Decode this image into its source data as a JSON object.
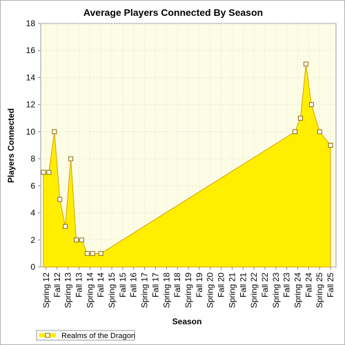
{
  "chart_data": {
    "type": "area",
    "title": "Average Players Connected By Season",
    "xlabel": "Season",
    "ylabel": "Players Connected",
    "ylim": [
      0,
      18
    ],
    "y_ticks": [
      0,
      2,
      4,
      6,
      8,
      10,
      12,
      14,
      16,
      18
    ],
    "grid": true,
    "legend_position": "bottom-left",
    "x_ticks": [
      "Spring 12",
      "Fall 12",
      "Spring 13",
      "Fall 13",
      "Spring 14",
      "Fall 14",
      "Spring 15",
      "Fall 15",
      "Fall 16",
      "Spring 17",
      "Fall 17",
      "Spring 18",
      "Fall 18",
      "Spring 19",
      "Fall 19",
      "Spring 20",
      "Fall 20",
      "Spring 21",
      "Fall 21",
      "Spring 22",
      "Fall 22",
      "Spring 23",
      "Fall 23",
      "Spring 24",
      "Fall 24",
      "Spring 25",
      "Fall 25"
    ],
    "series": [
      {
        "name": "Realms of the Dragon",
        "color": "#ffee00",
        "stroke": "#d4a000",
        "points": [
          {
            "x": "Spring 12",
            "y": 7
          },
          {
            "x": "Spring 12",
            "y": 7
          },
          {
            "x": "Fall 12",
            "y": 10
          },
          {
            "x": "Fall 12",
            "y": 5
          },
          {
            "x": "Spring 13",
            "y": 3
          },
          {
            "x": "Spring 13",
            "y": 8
          },
          {
            "x": "Fall 13",
            "y": 2
          },
          {
            "x": "Fall 13",
            "y": 2
          },
          {
            "x": "Spring 14",
            "y": 1
          },
          {
            "x": "Spring 14",
            "y": 1
          },
          {
            "x": "Fall 14",
            "y": 1
          },
          {
            "x": "Spring 24",
            "y": 10
          },
          {
            "x": "Spring 24",
            "y": 11
          },
          {
            "x": "Fall 24",
            "y": 15
          },
          {
            "x": "Fall 24",
            "y": 12
          },
          {
            "x": "Spring 25",
            "y": 10
          },
          {
            "x": "Fall 25",
            "y": 9
          }
        ]
      }
    ]
  }
}
